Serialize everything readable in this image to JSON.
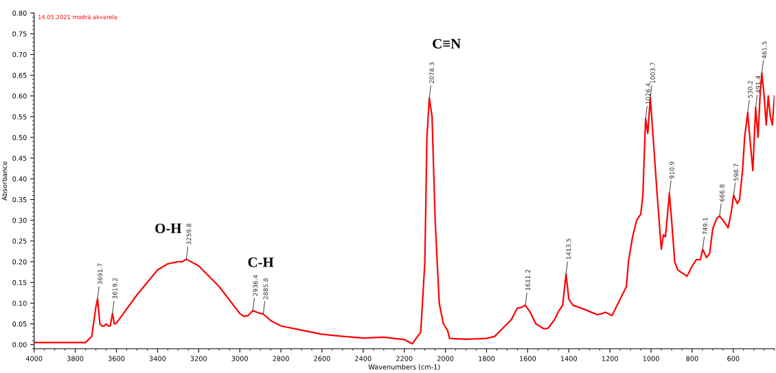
{
  "chart_data": {
    "type": "line",
    "xlabel": "Wavenumbers (cm-1)",
    "ylabel": "Absorbance",
    "xlim": [
      4000,
      400
    ],
    "ylim": [
      -0.01,
      0.8
    ],
    "xticks": [
      4000,
      3800,
      3600,
      3400,
      3200,
      3000,
      2800,
      2600,
      2400,
      2200,
      2000,
      1800,
      1600,
      1400,
      1200,
      1000,
      800,
      600
    ],
    "yticks": [
      {
        "value": 0,
        "label": "0.00"
      },
      {
        "value": 0.05,
        "label": "0.05"
      },
      {
        "value": 0.1,
        "label": "0.10"
      },
      {
        "value": 0.15,
        "label": "0.15"
      },
      {
        "value": 0.2,
        "label": "0.20"
      },
      {
        "value": 0.25,
        "label": "0.25"
      },
      {
        "value": 0.3,
        "label": "0.30"
      },
      {
        "value": 0.35,
        "label": "0.35"
      },
      {
        "value": 0.4,
        "label": "0.40"
      },
      {
        "value": 0.45,
        "label": "0.45"
      },
      {
        "value": 0.5,
        "label": "0.50"
      },
      {
        "value": 0.55,
        "label": "0.55"
      },
      {
        "value": 0.6,
        "label": "0.60"
      },
      {
        "value": 0.65,
        "label": "0.65"
      },
      {
        "value": 0.7,
        "label": "0.70"
      },
      {
        "value": 0.75,
        "label": "0.75"
      },
      {
        "value": 0.8,
        "label": "0.80"
      }
    ],
    "grid": false,
    "legend": false,
    "marker": "none",
    "line_style": "solid",
    "series": [
      {
        "color": "#ff0000",
        "x": [
          4000,
          3750,
          3720,
          3700,
          3691.7,
          3680,
          3670,
          3660,
          3650,
          3640,
          3630,
          3619.2,
          3610,
          3600,
          3500,
          3400,
          3350,
          3300,
          3280,
          3259.8,
          3200,
          3100,
          3000,
          2980,
          2960,
          2936.4,
          2900,
          2885.8,
          2850,
          2800,
          2700,
          2600,
          2500,
          2400,
          2300,
          2200,
          2160,
          2150,
          2120,
          2100,
          2090,
          2078.3,
          2065,
          2050,
          2030,
          2010,
          1990,
          1980,
          1900,
          1800,
          1760,
          1720,
          1680,
          1650,
          1630,
          1611.2,
          1590,
          1560,
          1520,
          1500,
          1470,
          1450,
          1430,
          1413.5,
          1400,
          1380,
          1350,
          1300,
          1260,
          1220,
          1190,
          1170,
          1140,
          1120,
          1110,
          1090,
          1070,
          1050,
          1040,
          1030,
          1026.4,
          1016,
          1003.7,
          990,
          970,
          955,
          950,
          940,
          930,
          910.9,
          900,
          885,
          870,
          840,
          825,
          800,
          780,
          760,
          749.1,
          730,
          715,
          700,
          680,
          666.8,
          650,
          625,
          610,
          598.7,
          580,
          570,
          555,
          545,
          530.2,
          520,
          505,
          491.4,
          480,
          470,
          461.5,
          450,
          440,
          430,
          420,
          410,
          400
        ],
        "values": [
          0.005,
          0.005,
          0.02,
          0.09,
          0.11,
          0.05,
          0.045,
          0.045,
          0.05,
          0.045,
          0.045,
          0.075,
          0.05,
          0.052,
          0.12,
          0.18,
          0.195,
          0.2,
          0.2,
          0.206,
          0.19,
          0.14,
          0.075,
          0.068,
          0.07,
          0.082,
          0.075,
          0.074,
          0.058,
          0.045,
          0.035,
          0.025,
          0.02,
          0.016,
          0.018,
          0.012,
          0.002,
          0.01,
          0.03,
          0.2,
          0.5,
          0.595,
          0.55,
          0.3,
          0.1,
          0.05,
          0.035,
          0.015,
          0.013,
          0.015,
          0.02,
          0.04,
          0.06,
          0.088,
          0.09,
          0.095,
          0.08,
          0.05,
          0.038,
          0.04,
          0.06,
          0.08,
          0.095,
          0.17,
          0.11,
          0.095,
          0.09,
          0.08,
          0.072,
          0.078,
          0.07,
          0.09,
          0.12,
          0.14,
          0.2,
          0.26,
          0.3,
          0.315,
          0.36,
          0.5,
          0.545,
          0.51,
          0.595,
          0.5,
          0.36,
          0.26,
          0.23,
          0.265,
          0.26,
          0.365,
          0.3,
          0.2,
          0.18,
          0.17,
          0.165,
          0.19,
          0.205,
          0.205,
          0.23,
          0.21,
          0.22,
          0.28,
          0.305,
          0.31,
          0.3,
          0.282,
          0.32,
          0.36,
          0.34,
          0.35,
          0.42,
          0.5,
          0.56,
          0.5,
          0.42,
          0.572,
          0.5,
          0.6,
          0.655,
          0.6,
          0.53,
          0.6,
          0.55,
          0.53,
          0.6
        ]
      }
    ],
    "annotations": [
      "14.05.2021 modrá akvarela",
      {
        "text": "3691.7",
        "x": 3691.7,
        "y": 0.11
      },
      {
        "text": "3619.2",
        "x": 3619.2,
        "y": 0.075
      },
      {
        "text": "3259.8",
        "x": 3259.8,
        "y": 0.206
      },
      {
        "text": "2936.4",
        "x": 2936.4,
        "y": 0.082
      },
      {
        "text": "2885.8",
        "x": 2885.8,
        "y": 0.074
      },
      {
        "text": "2078.3",
        "x": 2078.3,
        "y": 0.595
      },
      {
        "text": "1611.2",
        "x": 1611.2,
        "y": 0.095
      },
      {
        "text": "1413.5",
        "x": 1413.5,
        "y": 0.17
      },
      {
        "text": "1026.4",
        "x": 1026.4,
        "y": 0.545
      },
      {
        "text": "1003.7",
        "x": 1003.7,
        "y": 0.595
      },
      {
        "text": "910.9",
        "x": 910.9,
        "y": 0.365
      },
      {
        "text": "749.1",
        "x": 749.1,
        "y": 0.23
      },
      {
        "text": "666.8",
        "x": 666.8,
        "y": 0.31
      },
      {
        "text": "598.7",
        "x": 598.7,
        "y": 0.36
      },
      {
        "text": "530.2",
        "x": 530.2,
        "y": 0.56
      },
      {
        "text": "491.4",
        "x": 491.4,
        "y": 0.572
      },
      {
        "text": "461.5",
        "x": 461.5,
        "y": 0.655
      },
      "O-H",
      "C-H",
      "C≡N"
    ]
  }
}
